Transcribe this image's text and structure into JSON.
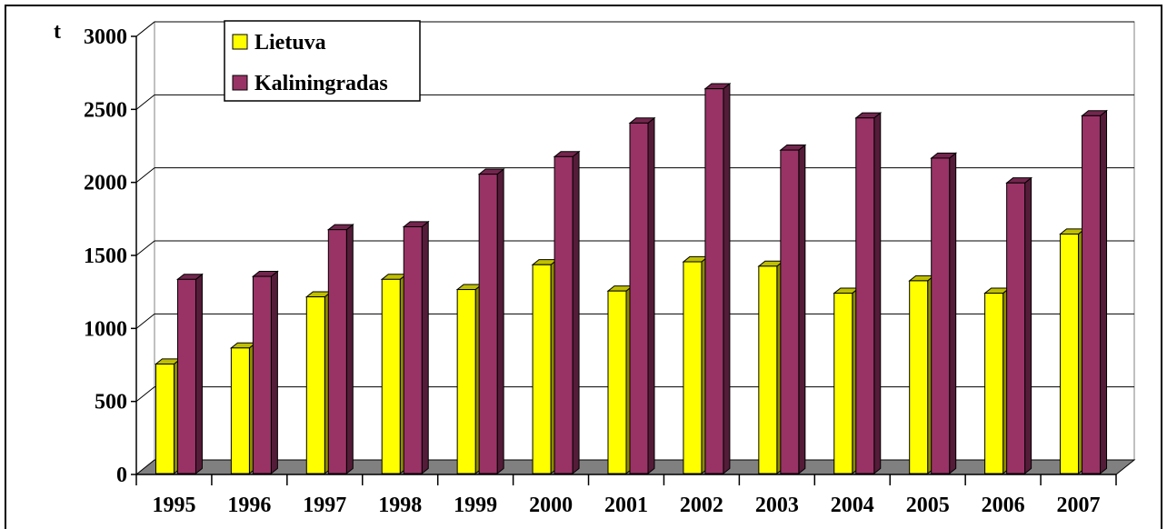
{
  "chart_data": {
    "type": "bar",
    "title": "",
    "ylabel": "t",
    "xlabel": "",
    "ylim": [
      0,
      3000
    ],
    "yticks": [
      "0",
      "500",
      "1000",
      "1500",
      "2000",
      "2500",
      "3000"
    ],
    "categories": [
      "1995",
      "1996",
      "1997",
      "1998",
      "1999",
      "2000",
      "2001",
      "2002",
      "2003",
      "2004",
      "2005",
      "2006",
      "2007"
    ],
    "series": [
      {
        "name": "Lietuva",
        "color": "#ffff00",
        "values": [
          750,
          860,
          1210,
          1330,
          1260,
          1430,
          1250,
          1450,
          1420,
          1235,
          1320,
          1235,
          1640
        ]
      },
      {
        "name": "Kaliningradas",
        "color": "#993366",
        "values": [
          1330,
          1350,
          1670,
          1690,
          2050,
          2170,
          2400,
          2635,
          2215,
          2435,
          2160,
          1990,
          2450
        ]
      }
    ],
    "grid": true,
    "legend_position": "top-left",
    "style": "3d-column"
  }
}
